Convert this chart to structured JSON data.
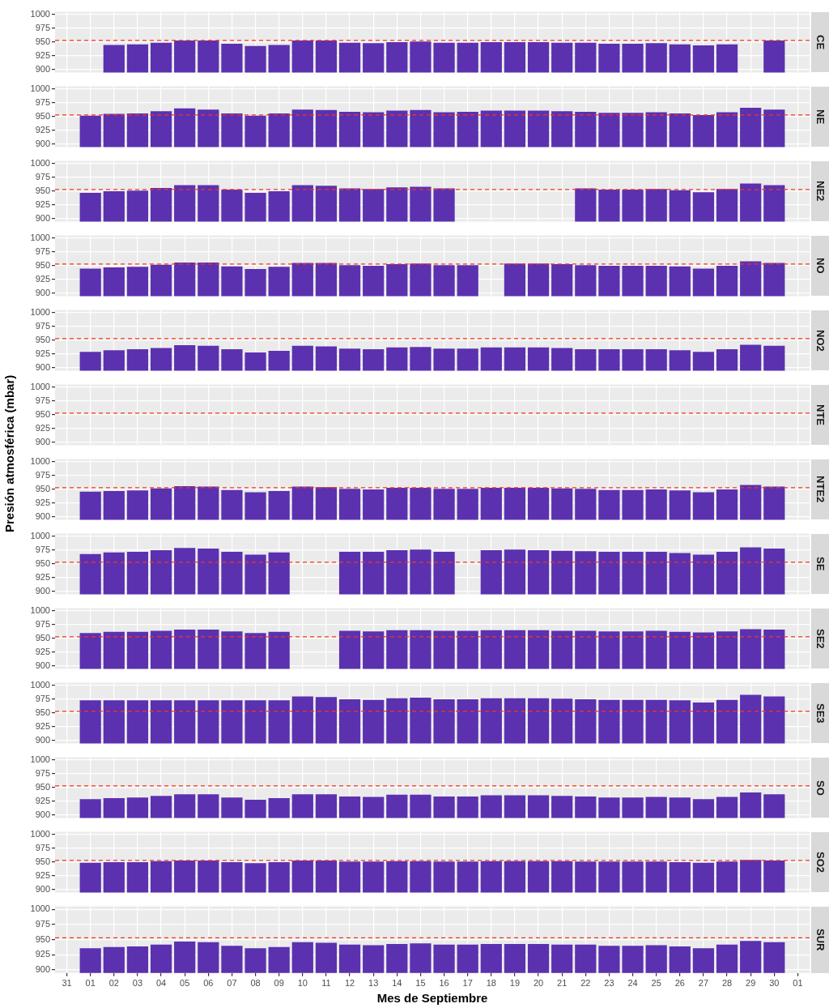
{
  "chart_data": [
    {
      "type": "bar",
      "title": "CE",
      "categories": [
        "31",
        "01",
        "02",
        "03",
        "04",
        "05",
        "06",
        "07",
        "08",
        "09",
        "10",
        "11",
        "12",
        "13",
        "14",
        "15",
        "16",
        "17",
        "18",
        "19",
        "20",
        "21",
        "22",
        "23",
        "24",
        "25",
        "26",
        "27",
        "28",
        "29",
        "30",
        "01"
      ],
      "values": [
        null,
        null,
        945,
        946,
        949,
        953,
        953,
        947,
        943,
        945,
        953,
        953,
        949,
        948,
        950,
        951,
        949,
        949,
        950,
        950,
        950,
        949,
        949,
        947,
        947,
        948,
        946,
        944,
        946,
        null,
        953,
        null
      ],
      "color": "#5b31b0",
      "ylim": [
        895,
        1005
      ],
      "yticks": [
        900,
        925,
        950,
        975,
        1000
      ],
      "grid": true,
      "tick_labels": "y",
      "ref_lines": [
        {
          "axis": "y",
          "value": 953,
          "color": "#f8341c",
          "line_style": "dashed"
        }
      ]
    },
    {
      "type": "bar",
      "title": "NE",
      "categories": [
        "31",
        "01",
        "02",
        "03",
        "04",
        "05",
        "06",
        "07",
        "08",
        "09",
        "10",
        "11",
        "12",
        "13",
        "14",
        "15",
        "16",
        "17",
        "18",
        "19",
        "20",
        "21",
        "22",
        "23",
        "24",
        "25",
        "26",
        "27",
        "28",
        "29",
        "30",
        "01"
      ],
      "values": [
        null,
        952,
        955,
        956,
        960,
        965,
        963,
        956,
        952,
        956,
        963,
        962,
        959,
        958,
        961,
        962,
        958,
        959,
        961,
        961,
        961,
        960,
        959,
        957,
        957,
        958,
        956,
        953,
        958,
        966,
        963,
        null
      ],
      "color": "#5b31b0",
      "ylim": [
        895,
        1005
      ],
      "yticks": [
        900,
        925,
        950,
        975,
        1000
      ],
      "grid": true,
      "tick_labels": "y",
      "ref_lines": [
        {
          "axis": "y",
          "value": 953,
          "color": "#f8341c",
          "line_style": "dashed"
        }
      ]
    },
    {
      "type": "bar",
      "title": "NE2",
      "categories": [
        "31",
        "01",
        "02",
        "03",
        "04",
        "05",
        "06",
        "07",
        "08",
        "09",
        "10",
        "11",
        "12",
        "13",
        "14",
        "15",
        "16",
        "17",
        "18",
        "19",
        "20",
        "21",
        "22",
        "23",
        "24",
        "25",
        "26",
        "27",
        "28",
        "29",
        "30",
        "01"
      ],
      "values": [
        null,
        947,
        950,
        951,
        956,
        961,
        961,
        953,
        947,
        950,
        961,
        960,
        955,
        954,
        957,
        958,
        955,
        null,
        null,
        null,
        null,
        null,
        955,
        953,
        953,
        954,
        952,
        948,
        954,
        964,
        961,
        null
      ],
      "color": "#5b31b0",
      "ylim": [
        895,
        1005
      ],
      "yticks": [
        900,
        925,
        950,
        975,
        1000
      ],
      "grid": true,
      "tick_labels": "y",
      "ref_lines": [
        {
          "axis": "y",
          "value": 953,
          "color": "#f8341c",
          "line_style": "dashed"
        }
      ]
    },
    {
      "type": "bar",
      "title": "NO",
      "categories": [
        "31",
        "01",
        "02",
        "03",
        "04",
        "05",
        "06",
        "07",
        "08",
        "09",
        "10",
        "11",
        "12",
        "13",
        "14",
        "15",
        "16",
        "17",
        "18",
        "19",
        "20",
        "21",
        "22",
        "23",
        "24",
        "25",
        "26",
        "27",
        "28",
        "29",
        "30",
        "01"
      ],
      "values": [
        null,
        945,
        947,
        948,
        952,
        956,
        956,
        949,
        944,
        948,
        955,
        955,
        951,
        950,
        953,
        954,
        951,
        951,
        null,
        954,
        954,
        953,
        951,
        950,
        950,
        950,
        949,
        945,
        950,
        958,
        955,
        null
      ],
      "color": "#5b31b0",
      "ylim": [
        895,
        1005
      ],
      "yticks": [
        900,
        925,
        950,
        975,
        1000
      ],
      "grid": true,
      "tick_labels": "y",
      "ref_lines": [
        {
          "axis": "y",
          "value": 953,
          "color": "#f8341c",
          "line_style": "dashed"
        }
      ]
    },
    {
      "type": "bar",
      "title": "NO2",
      "categories": [
        "31",
        "01",
        "02",
        "03",
        "04",
        "05",
        "06",
        "07",
        "08",
        "09",
        "10",
        "11",
        "12",
        "13",
        "14",
        "15",
        "16",
        "17",
        "18",
        "19",
        "20",
        "21",
        "22",
        "23",
        "24",
        "25",
        "26",
        "27",
        "28",
        "29",
        "30",
        "01"
      ],
      "values": [
        null,
        929,
        932,
        934,
        936,
        941,
        940,
        934,
        928,
        931,
        940,
        939,
        935,
        934,
        937,
        938,
        935,
        935,
        937,
        937,
        937,
        936,
        934,
        934,
        934,
        934,
        932,
        929,
        934,
        942,
        940,
        null
      ],
      "color": "#5b31b0",
      "ylim": [
        895,
        1005
      ],
      "yticks": [
        900,
        925,
        950,
        975,
        1000
      ],
      "grid": true,
      "tick_labels": "y",
      "ref_lines": [
        {
          "axis": "y",
          "value": 953,
          "color": "#f8341c",
          "line_style": "dashed"
        }
      ]
    },
    {
      "type": "bar",
      "title": "NTE",
      "categories": [
        "31",
        "01",
        "02",
        "03",
        "04",
        "05",
        "06",
        "07",
        "08",
        "09",
        "10",
        "11",
        "12",
        "13",
        "14",
        "15",
        "16",
        "17",
        "18",
        "19",
        "20",
        "21",
        "22",
        "23",
        "24",
        "25",
        "26",
        "27",
        "28",
        "29",
        "30",
        "01"
      ],
      "values": [
        null,
        null,
        null,
        null,
        null,
        null,
        null,
        null,
        null,
        null,
        null,
        null,
        null,
        null,
        null,
        null,
        null,
        null,
        null,
        null,
        null,
        null,
        null,
        null,
        null,
        null,
        null,
        null,
        null,
        null,
        null,
        null
      ],
      "color": "#5b31b0",
      "ylim": [
        895,
        1005
      ],
      "yticks": [
        900,
        925,
        950,
        975,
        1000
      ],
      "grid": true,
      "tick_labels": "y",
      "ref_lines": [
        {
          "axis": "y",
          "value": 953,
          "color": "#f8341c",
          "line_style": "dashed"
        }
      ]
    },
    {
      "type": "bar",
      "title": "NTE2",
      "ylabel": "Presión atmosférica (mbar)",
      "categories": [
        "31",
        "01",
        "02",
        "03",
        "04",
        "05",
        "06",
        "07",
        "08",
        "09",
        "10",
        "11",
        "12",
        "13",
        "14",
        "15",
        "16",
        "17",
        "18",
        "19",
        "20",
        "21",
        "22",
        "23",
        "24",
        "25",
        "26",
        "27",
        "28",
        "29",
        "30",
        "01"
      ],
      "values": [
        null,
        946,
        947,
        948,
        952,
        956,
        955,
        949,
        945,
        947,
        955,
        954,
        951,
        950,
        953,
        953,
        951,
        951,
        953,
        953,
        953,
        952,
        951,
        949,
        949,
        950,
        948,
        945,
        950,
        958,
        955,
        null
      ],
      "color": "#5b31b0",
      "ylim": [
        895,
        1005
      ],
      "yticks": [
        900,
        925,
        950,
        975,
        1000
      ],
      "grid": true,
      "tick_labels": "y",
      "ref_lines": [
        {
          "axis": "y",
          "value": 953,
          "color": "#f8341c",
          "line_style": "dashed"
        }
      ]
    },
    {
      "type": "bar",
      "title": "SE",
      "categories": [
        "31",
        "01",
        "02",
        "03",
        "04",
        "05",
        "06",
        "07",
        "08",
        "09",
        "10",
        "11",
        "12",
        "13",
        "14",
        "15",
        "16",
        "17",
        "18",
        "19",
        "20",
        "21",
        "22",
        "23",
        "24",
        "25",
        "26",
        "27",
        "28",
        "29",
        "30",
        "01"
      ],
      "values": [
        null,
        968,
        971,
        972,
        975,
        979,
        978,
        972,
        967,
        971,
        null,
        null,
        972,
        972,
        975,
        976,
        972,
        null,
        975,
        976,
        975,
        974,
        973,
        972,
        972,
        972,
        970,
        967,
        972,
        980,
        978,
        null
      ],
      "color": "#5b31b0",
      "ylim": [
        895,
        1005
      ],
      "yticks": [
        900,
        925,
        950,
        975,
        1000
      ],
      "grid": true,
      "tick_labels": "y",
      "ref_lines": [
        {
          "axis": "y",
          "value": 953,
          "color": "#f8341c",
          "line_style": "dashed"
        }
      ]
    },
    {
      "type": "bar",
      "title": "SE2",
      "categories": [
        "31",
        "01",
        "02",
        "03",
        "04",
        "05",
        "06",
        "07",
        "08",
        "09",
        "10",
        "11",
        "12",
        "13",
        "14",
        "15",
        "16",
        "17",
        "18",
        "19",
        "20",
        "21",
        "22",
        "23",
        "24",
        "25",
        "26",
        "27",
        "28",
        "29",
        "30",
        "01"
      ],
      "values": [
        null,
        960,
        962,
        962,
        964,
        966,
        966,
        963,
        960,
        962,
        null,
        null,
        964,
        963,
        965,
        965,
        964,
        964,
        965,
        965,
        965,
        964,
        964,
        963,
        963,
        964,
        962,
        961,
        963,
        967,
        966,
        null
      ],
      "color": "#5b31b0",
      "ylim": [
        895,
        1005
      ],
      "yticks": [
        900,
        925,
        950,
        975,
        1000
      ],
      "grid": true,
      "tick_labels": "y",
      "ref_lines": [
        {
          "axis": "y",
          "value": 953,
          "color": "#f8341c",
          "line_style": "dashed"
        }
      ]
    },
    {
      "type": "bar",
      "title": "SE3",
      "categories": [
        "31",
        "01",
        "02",
        "03",
        "04",
        "05",
        "06",
        "07",
        "08",
        "09",
        "10",
        "11",
        "12",
        "13",
        "14",
        "15",
        "16",
        "17",
        "18",
        "19",
        "20",
        "21",
        "22",
        "23",
        "24",
        "25",
        "26",
        "27",
        "28",
        "29",
        "30",
        "01"
      ],
      "values": [
        null,
        973,
        973,
        973,
        973,
        973,
        973,
        973,
        973,
        973,
        980,
        979,
        975,
        974,
        977,
        978,
        975,
        975,
        977,
        977,
        977,
        976,
        975,
        974,
        974,
        974,
        973,
        969,
        974,
        983,
        980,
        null
      ],
      "color": "#5b31b0",
      "ylim": [
        895,
        1005
      ],
      "yticks": [
        900,
        925,
        950,
        975,
        1000
      ],
      "grid": true,
      "tick_labels": "y",
      "ref_lines": [
        {
          "axis": "y",
          "value": 953,
          "color": "#f8341c",
          "line_style": "dashed"
        }
      ]
    },
    {
      "type": "bar",
      "title": "SO",
      "categories": [
        "31",
        "01",
        "02",
        "03",
        "04",
        "05",
        "06",
        "07",
        "08",
        "09",
        "10",
        "11",
        "12",
        "13",
        "14",
        "15",
        "16",
        "17",
        "18",
        "19",
        "20",
        "21",
        "22",
        "23",
        "24",
        "25",
        "26",
        "27",
        "28",
        "29",
        "30",
        "01"
      ],
      "values": [
        null,
        929,
        931,
        932,
        935,
        938,
        938,
        932,
        928,
        931,
        938,
        938,
        934,
        933,
        937,
        937,
        934,
        934,
        936,
        936,
        936,
        935,
        934,
        932,
        932,
        933,
        932,
        929,
        933,
        941,
        938,
        null
      ],
      "color": "#5b31b0",
      "ylim": [
        895,
        1005
      ],
      "yticks": [
        900,
        925,
        950,
        975,
        1000
      ],
      "grid": true,
      "tick_labels": "y",
      "ref_lines": [
        {
          "axis": "y",
          "value": 953,
          "color": "#f8341c",
          "line_style": "dashed"
        }
      ]
    },
    {
      "type": "bar",
      "title": "SO2",
      "categories": [
        "31",
        "01",
        "02",
        "03",
        "04",
        "05",
        "06",
        "07",
        "08",
        "09",
        "10",
        "11",
        "12",
        "13",
        "14",
        "15",
        "16",
        "17",
        "18",
        "19",
        "20",
        "21",
        "22",
        "23",
        "24",
        "25",
        "26",
        "27",
        "28",
        "29",
        "30",
        "01"
      ],
      "values": [
        null,
        949,
        950,
        950,
        952,
        953,
        953,
        950,
        948,
        950,
        953,
        953,
        951,
        951,
        952,
        952,
        951,
        951,
        952,
        952,
        952,
        952,
        951,
        951,
        951,
        951,
        950,
        949,
        951,
        954,
        953,
        null
      ],
      "color": "#5b31b0",
      "ylim": [
        895,
        1005
      ],
      "yticks": [
        900,
        925,
        950,
        975,
        1000
      ],
      "grid": true,
      "tick_labels": "y",
      "ref_lines": [
        {
          "axis": "y",
          "value": 953,
          "color": "#f8341c",
          "line_style": "dashed"
        }
      ]
    },
    {
      "type": "bar",
      "title": "SUR",
      "xlabel": "Mes de Septiembre",
      "categories": [
        "31",
        "01",
        "02",
        "03",
        "04",
        "05",
        "06",
        "07",
        "08",
        "09",
        "10",
        "11",
        "12",
        "13",
        "14",
        "15",
        "16",
        "17",
        "18",
        "19",
        "20",
        "21",
        "22",
        "23",
        "24",
        "25",
        "26",
        "27",
        "28",
        "29",
        "30",
        "01"
      ],
      "values": [
        null,
        936,
        938,
        939,
        942,
        947,
        946,
        940,
        936,
        938,
        946,
        945,
        942,
        941,
        943,
        944,
        942,
        942,
        943,
        943,
        943,
        942,
        942,
        940,
        940,
        941,
        939,
        936,
        942,
        948,
        946,
        null
      ],
      "color": "#5b31b0",
      "ylim": [
        895,
        1005
      ],
      "yticks": [
        900,
        925,
        950,
        975,
        1000
      ],
      "grid": true,
      "ref_lines": [
        {
          "axis": "y",
          "value": 953,
          "color": "#f8341c",
          "line_style": "dashed"
        }
      ]
    }
  ]
}
